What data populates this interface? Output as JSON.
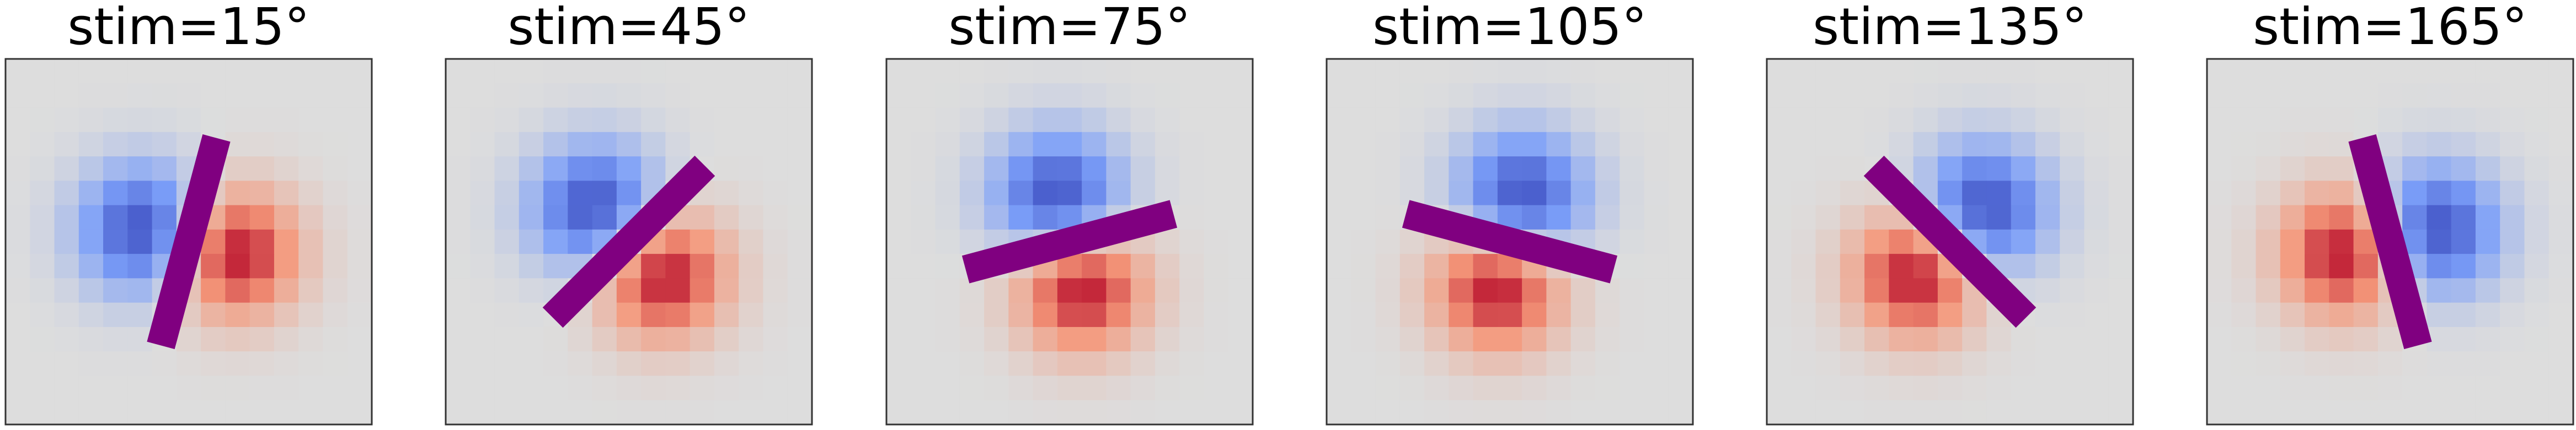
{
  "chart_data": [
    {
      "type": "heatmap",
      "title": "stim=15°",
      "stim_deg": 15,
      "grid": false,
      "colormap": "coolwarm",
      "bar_color": "#800080"
    },
    {
      "type": "heatmap",
      "title": "stim=45°",
      "stim_deg": 45,
      "grid": false,
      "colormap": "coolwarm",
      "bar_color": "#800080"
    },
    {
      "type": "heatmap",
      "title": "stim=75°",
      "stim_deg": 75,
      "grid": false,
      "colormap": "coolwarm",
      "bar_color": "#800080"
    },
    {
      "type": "heatmap",
      "title": "stim=105°",
      "stim_deg": 105,
      "grid": false,
      "colormap": "coolwarm",
      "bar_color": "#800080"
    },
    {
      "type": "heatmap",
      "title": "stim=135°",
      "stim_deg": 135,
      "grid": false,
      "colormap": "coolwarm",
      "bar_color": "#800080"
    },
    {
      "type": "heatmap",
      "title": "stim=165°",
      "stim_deg": 165,
      "grid": false,
      "colormap": "coolwarm",
      "bar_color": "#800080"
    }
  ]
}
